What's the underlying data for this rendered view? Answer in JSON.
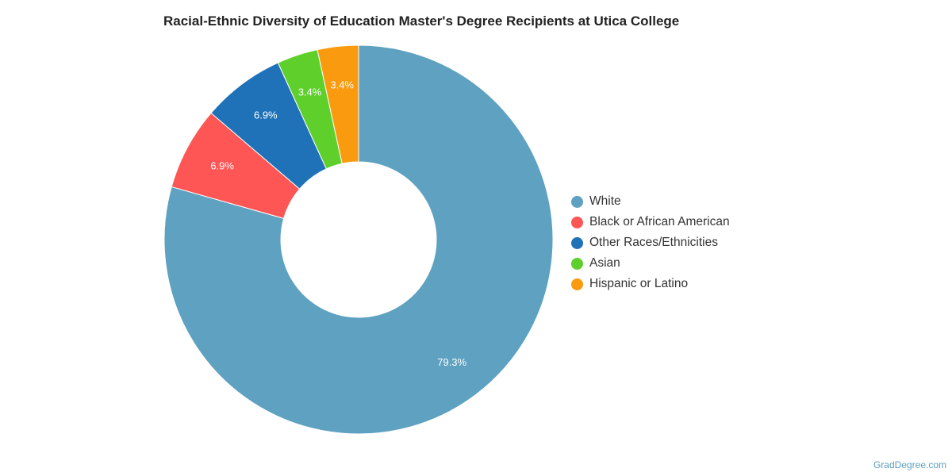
{
  "chart_data": {
    "type": "pie",
    "title": "Racial-Ethnic Diversity of Education Master's Degree Recipients at Utica College",
    "donut": true,
    "legend_position": "right",
    "slices": [
      {
        "label": "White",
        "value": 79.3,
        "display": "79.3%",
        "color": "#5ea1c0"
      },
      {
        "label": "Black or African American",
        "value": 6.9,
        "display": "6.9%",
        "color": "#fe5555"
      },
      {
        "label": "Other Races/Ethnicities",
        "value": 6.9,
        "display": "6.9%",
        "color": "#1f72b8"
      },
      {
        "label": "Asian",
        "value": 3.4,
        "display": "3.4%",
        "color": "#5fcf2b"
      },
      {
        "label": "Hispanic or Latino",
        "value": 3.4,
        "display": "3.4%",
        "color": "#f99a0f"
      }
    ]
  },
  "watermark": "GradDegree.com"
}
